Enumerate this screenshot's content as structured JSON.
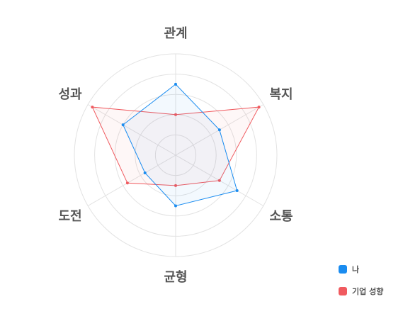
{
  "chart_data": {
    "type": "radar",
    "axes": [
      "관계",
      "복지",
      "소통",
      "균형",
      "도전",
      "성과"
    ],
    "scale_max": 5,
    "rings": 5,
    "grid": true,
    "legend_position": "bottom-right",
    "series": [
      {
        "name": "나",
        "color": "#1a8cf0",
        "values": [
          3.5,
          2.5,
          3.5,
          2.5,
          1.75,
          3.0
        ]
      },
      {
        "name": "기업 성향",
        "color": "#f05a5f",
        "values": [
          2.0,
          4.75,
          2.5,
          1.5,
          2.75,
          4.75
        ]
      }
    ]
  }
}
